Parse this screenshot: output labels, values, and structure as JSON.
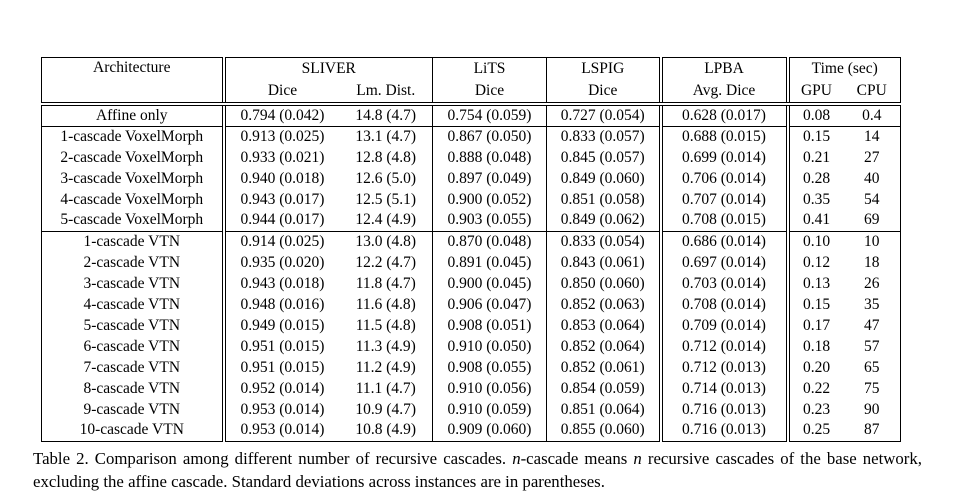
{
  "page": {
    "background_color": "#ffffff",
    "text_color": "#000000"
  },
  "table": {
    "column_groups": [
      {
        "label": "Architecture",
        "subcolumns": []
      },
      {
        "label": "SLIVER",
        "subcolumns": [
          "Dice",
          "Lm. Dist."
        ]
      },
      {
        "label": "LiTS",
        "subcolumns": [
          "Dice"
        ]
      },
      {
        "label": "LSPIG",
        "subcolumns": [
          "Dice"
        ]
      },
      {
        "label": "LPBA",
        "subcolumns": [
          "Avg. Dice"
        ]
      },
      {
        "label": "Time (sec)",
        "subcolumns": [
          "GPU",
          "CPU"
        ]
      }
    ],
    "rows": [
      {
        "architecture": "Affine only",
        "section": "affine",
        "cells": [
          "0.794 (0.042)",
          "14.8 (4.7)",
          "0.754 (0.059)",
          "0.727 (0.054)",
          "0.628 (0.017)",
          "0.08",
          "0.4"
        ],
        "bold": []
      },
      {
        "architecture": "1-cascade VoxelMorph",
        "section": "voxelmorph",
        "cells": [
          "0.913 (0.025)",
          "13.1 (4.7)",
          "0.867 (0.050)",
          "0.833 (0.057)",
          "0.688 (0.015)",
          "0.15",
          "14"
        ],
        "bold": []
      },
      {
        "architecture": "2-cascade VoxelMorph",
        "section": "voxelmorph",
        "cells": [
          "0.933 (0.021)",
          "12.8 (4.8)",
          "0.888 (0.048)",
          "0.845 (0.057)",
          "0.699 (0.014)",
          "0.21",
          "27"
        ],
        "bold": []
      },
      {
        "architecture": "3-cascade VoxelMorph",
        "section": "voxelmorph",
        "cells": [
          "0.940 (0.018)",
          "12.6 (5.0)",
          "0.897 (0.049)",
          "0.849 (0.060)",
          "0.706 (0.014)",
          "0.28",
          "40"
        ],
        "bold": []
      },
      {
        "architecture": "4-cascade VoxelMorph",
        "section": "voxelmorph",
        "cells": [
          "0.943 (0.017)",
          "12.5 (5.1)",
          "0.900 (0.052)",
          "0.851 (0.058)",
          "0.707 (0.014)",
          "0.35",
          "54"
        ],
        "bold": [
          3
        ]
      },
      {
        "architecture": "5-cascade VoxelMorph",
        "section": "voxelmorph",
        "cells": [
          "0.944 (0.017)",
          "12.4 (4.9)",
          "0.903 (0.055)",
          "0.849 (0.062)",
          "0.708 (0.015)",
          "0.41",
          "69"
        ],
        "bold": [
          0,
          1,
          2,
          4
        ]
      },
      {
        "architecture": "1-cascade VTN",
        "section": "vtn",
        "cells": [
          "0.914 (0.025)",
          "13.0 (4.8)",
          "0.870 (0.048)",
          "0.833 (0.054)",
          "0.686 (0.014)",
          "0.10",
          "10"
        ],
        "bold": []
      },
      {
        "architecture": "2-cascade VTN",
        "section": "vtn",
        "cells": [
          "0.935 (0.020)",
          "12.2 (4.7)",
          "0.891 (0.045)",
          "0.843 (0.061)",
          "0.697 (0.014)",
          "0.12",
          "18"
        ],
        "bold": []
      },
      {
        "architecture": "3-cascade VTN",
        "section": "vtn",
        "cells": [
          "0.943 (0.018)",
          "11.8 (4.7)",
          "0.900 (0.045)",
          "0.850 (0.060)",
          "0.703 (0.014)",
          "0.13",
          "26"
        ],
        "bold": []
      },
      {
        "architecture": "4-cascade VTN",
        "section": "vtn",
        "cells": [
          "0.948 (0.016)",
          "11.6 (4.8)",
          "0.906 (0.047)",
          "0.852 (0.063)",
          "0.708 (0.014)",
          "0.15",
          "35"
        ],
        "bold": []
      },
      {
        "architecture": "5-cascade VTN",
        "section": "vtn",
        "cells": [
          "0.949 (0.015)",
          "11.5 (4.8)",
          "0.908 (0.051)",
          "0.853 (0.064)",
          "0.709 (0.014)",
          "0.17",
          "47"
        ],
        "bold": []
      },
      {
        "architecture": "6-cascade VTN",
        "section": "vtn",
        "cells": [
          "0.951 (0.015)",
          "11.3 (4.9)",
          "0.910 (0.050)",
          "0.852 (0.064)",
          "0.712 (0.014)",
          "0.18",
          "57"
        ],
        "bold": [
          2
        ]
      },
      {
        "architecture": "7-cascade VTN",
        "section": "vtn",
        "cells": [
          "0.951 (0.015)",
          "11.2 (4.9)",
          "0.908 (0.055)",
          "0.852 (0.061)",
          "0.712 (0.013)",
          "0.20",
          "65"
        ],
        "bold": []
      },
      {
        "architecture": "8-cascade VTN",
        "section": "vtn",
        "cells": [
          "0.952 (0.014)",
          "11.1 (4.7)",
          "0.910 (0.056)",
          "0.854 (0.059)",
          "0.714 (0.013)",
          "0.22",
          "75"
        ],
        "bold": [
          2
        ]
      },
      {
        "architecture": "9-cascade VTN",
        "section": "vtn",
        "cells": [
          "0.953 (0.014)",
          "10.9 (4.7)",
          "0.910 (0.059)",
          "0.851 (0.064)",
          "0.716 (0.013)",
          "0.23",
          "90"
        ],
        "bold": [
          0,
          2,
          4
        ]
      },
      {
        "architecture": "10-cascade VTN",
        "section": "vtn",
        "cells": [
          "0.953 (0.014)",
          "10.8 (4.9)",
          "0.909 (0.060)",
          "0.855 (0.060)",
          "0.716 (0.013)",
          "0.25",
          "87"
        ],
        "bold": [
          0,
          1,
          3,
          4
        ]
      }
    ]
  },
  "caption": {
    "segments": [
      "Table 2. Comparison among different number of recursive cascades. ",
      "n",
      "-cascade means ",
      "n",
      " recursive cascades of the base network, excluding the affine cascade. Standard deviations across instances are in parentheses."
    ]
  }
}
